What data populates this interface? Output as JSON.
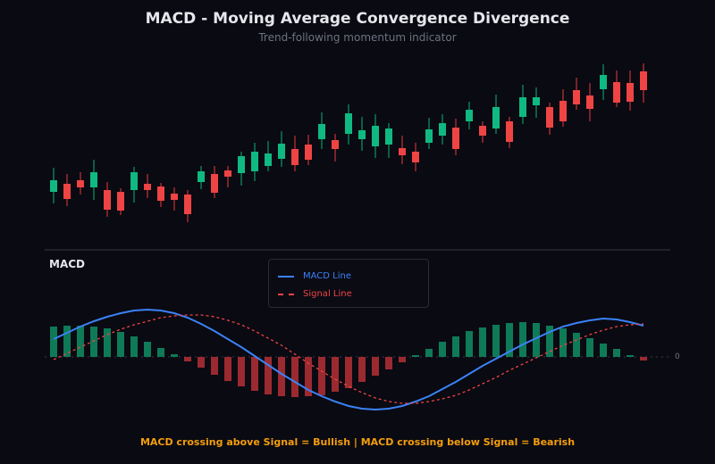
{
  "chart_data": [
    {
      "type": "candlestick",
      "title": "MACD - Moving Average Convergence Divergence",
      "subtitle": "Trend-following momentum indicator",
      "colors": {
        "up": "#10b981",
        "down": "#ef4444"
      },
      "ylim": [
        0,
        300
      ],
      "candles": [
        [
          85,
          98,
          112,
          72
        ],
        [
          94,
          77,
          105,
          69
        ],
        [
          98,
          90,
          107,
          82
        ],
        [
          90,
          107,
          121,
          76
        ],
        [
          87,
          65,
          96,
          57
        ],
        [
          85,
          64,
          89,
          59
        ],
        [
          87,
          107,
          113,
          73
        ],
        [
          94,
          87,
          105,
          78
        ],
        [
          91,
          75,
          95,
          68
        ],
        [
          83,
          76,
          90,
          64
        ],
        [
          82,
          60,
          87,
          51
        ],
        [
          96,
          108,
          114,
          88
        ],
        [
          105,
          84,
          114,
          78
        ],
        [
          109,
          102,
          114,
          90
        ],
        [
          106,
          125,
          130,
          92
        ],
        [
          108,
          130,
          140,
          97
        ],
        [
          114,
          128,
          142,
          108
        ],
        [
          122,
          139,
          153,
          113
        ],
        [
          133,
          115,
          148,
          108
        ],
        [
          138,
          121,
          149,
          115
        ],
        [
          144,
          161,
          174,
          133
        ],
        [
          143,
          133,
          150,
          119
        ],
        [
          150,
          173,
          183,
          138
        ],
        [
          144,
          154,
          169,
          131
        ],
        [
          136,
          159,
          172,
          123
        ],
        [
          138,
          156,
          162,
          123
        ],
        [
          134,
          126,
          148,
          116
        ],
        [
          130,
          118,
          140,
          108
        ],
        [
          140,
          155,
          168,
          133
        ],
        [
          148,
          162,
          172,
          138
        ],
        [
          157,
          133,
          167,
          126
        ],
        [
          164,
          177,
          186,
          155
        ],
        [
          159,
          148,
          164,
          140
        ],
        [
          156,
          180,
          194,
          150
        ],
        [
          164,
          141,
          169,
          134
        ],
        [
          169,
          191,
          205,
          161
        ],
        [
          182,
          191,
          202,
          168
        ],
        [
          180,
          157,
          185,
          149
        ],
        [
          187,
          164,
          200,
          158
        ],
        [
          199,
          183,
          213,
          177
        ],
        [
          193,
          178,
          207,
          164
        ],
        [
          200,
          216,
          228,
          188
        ],
        [
          208,
          185,
          221,
          180
        ],
        [
          207,
          186,
          221,
          176
        ],
        [
          220,
          199,
          229,
          185
        ]
      ],
      "candle_fields": [
        "open",
        "close",
        "high",
        "low"
      ]
    },
    {
      "type": "line+bar",
      "panel_label": "MACD",
      "ylim": [
        -70,
        70
      ],
      "zero_label": "0",
      "legend_position": "top-center",
      "series": [
        {
          "name": "MACD Line",
          "style": "solid",
          "color": "#3b82f6",
          "values": [
            20,
            27,
            34,
            40,
            45,
            49,
            52,
            53,
            52,
            49,
            44,
            37,
            29,
            20,
            11,
            1,
            -9,
            -19,
            -28,
            -37,
            -44,
            -50,
            -55,
            -58,
            -59,
            -58,
            -55,
            -50,
            -44,
            -36,
            -28,
            -19,
            -10,
            -2,
            6,
            14,
            21,
            28,
            34,
            38,
            41,
            43,
            42,
            39,
            35
          ]
        },
        {
          "name": "Signal Line",
          "style": "dashed",
          "color": "#ef4444",
          "values": [
            -3,
            4,
            11,
            18,
            25,
            31,
            36,
            40,
            44,
            46,
            47,
            47,
            45,
            41,
            36,
            29,
            21,
            13,
            3,
            -7,
            -16,
            -25,
            -33,
            -40,
            -46,
            -50,
            -52,
            -52,
            -50,
            -47,
            -43,
            -37,
            -30,
            -23,
            -15,
            -8,
            -1,
            6,
            13,
            19,
            25,
            30,
            34,
            36,
            37
          ]
        }
      ],
      "histogram": {
        "colors": {
          "positive": "#0f7a57",
          "negative": "#9b2a30"
        },
        "values": [
          34,
          35,
          35,
          34,
          32,
          28,
          23,
          17,
          10,
          3,
          -5,
          -12,
          -20,
          -27,
          -33,
          -38,
          -42,
          -44,
          -45,
          -44,
          -43,
          -39,
          -35,
          -28,
          -21,
          -14,
          -6,
          2,
          9,
          17,
          23,
          29,
          33,
          36,
          38,
          39,
          38,
          35,
          32,
          27,
          21,
          15,
          9,
          2,
          -4
        ]
      }
    }
  ],
  "footer": "MACD crossing above Signal = Bullish | MACD crossing below Signal = Bearish"
}
